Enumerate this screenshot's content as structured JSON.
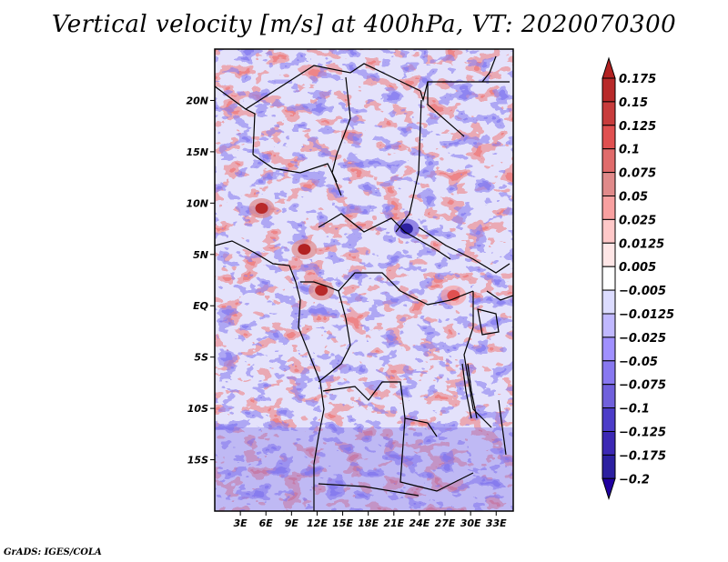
{
  "title": "Vertical velocity [m/s] at 400hPa, VT: 2020070300",
  "footer": "GrADS: IGES/COLA",
  "map": {
    "variable": "Vertical velocity",
    "units": "m/s",
    "level": "400hPa",
    "valid_time": "2020070300",
    "lat_range": [
      -20,
      25
    ],
    "lon_range": [
      0,
      35
    ],
    "lat_ticks": [
      {
        "value": 20,
        "label": "20N"
      },
      {
        "value": 15,
        "label": "15N"
      },
      {
        "value": 10,
        "label": "10N"
      },
      {
        "value": 5,
        "label": "5N"
      },
      {
        "value": 0,
        "label": "EQ"
      },
      {
        "value": -5,
        "label": "5S"
      },
      {
        "value": -10,
        "label": "10S"
      },
      {
        "value": -15,
        "label": "15S"
      }
    ],
    "lon_ticks": [
      {
        "value": 3,
        "label": "3E"
      },
      {
        "value": 6,
        "label": "6E"
      },
      {
        "value": 9,
        "label": "9E"
      },
      {
        "value": 12,
        "label": "12E"
      },
      {
        "value": 15,
        "label": "15E"
      },
      {
        "value": 18,
        "label": "18E"
      },
      {
        "value": 21,
        "label": "21E"
      },
      {
        "value": 24,
        "label": "24E"
      },
      {
        "value": 27,
        "label": "27E"
      },
      {
        "value": 30,
        "label": "30E"
      },
      {
        "value": 33,
        "label": "33E"
      }
    ],
    "hotspots": [
      {
        "lon": 5.5,
        "lat": 9.5,
        "value": 0.15
      },
      {
        "lon": 10.5,
        "lat": 5.5,
        "value": 0.175
      },
      {
        "lon": 22.5,
        "lat": 7.5,
        "value": -0.2
      },
      {
        "lon": 12.5,
        "lat": 1.5,
        "value": 0.15
      },
      {
        "lon": 28.0,
        "lat": 1.0,
        "value": 0.1
      }
    ]
  },
  "colorbar": {
    "labels": [
      "0.175",
      "0.15",
      "0.125",
      "0.1",
      "0.075",
      "0.05",
      "0.025",
      "0.0125",
      "0.005",
      "-0.005",
      "-0.0125",
      "-0.025",
      "-0.05",
      "-0.075",
      "-0.1",
      "-0.125",
      "-0.175",
      "-0.2"
    ],
    "colors": [
      "#b22222",
      "#b82a2a",
      "#c83c3c",
      "#e05050",
      "#e06b6b",
      "#e08a8a",
      "#f8a0a0",
      "#ffc8c8",
      "#ffe6e6",
      "#ffffff",
      "#dcdcff",
      "#c0b8ff",
      "#a090ff",
      "#8878f0",
      "#7060dc",
      "#4c3cc8",
      "#3c28b4",
      "#2c20a0",
      "#2000a0"
    ]
  }
}
